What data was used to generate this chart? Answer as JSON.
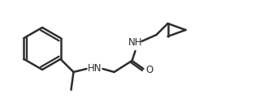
{
  "line_color": "#2d2d2d",
  "line_width": 1.8,
  "bg_color": "#ffffff",
  "figsize": [
    3.25,
    1.26
  ],
  "dpi": 100,
  "nh_label1": "NH",
  "hn_label": "HN",
  "o_label": "O",
  "font_size": 8.5
}
